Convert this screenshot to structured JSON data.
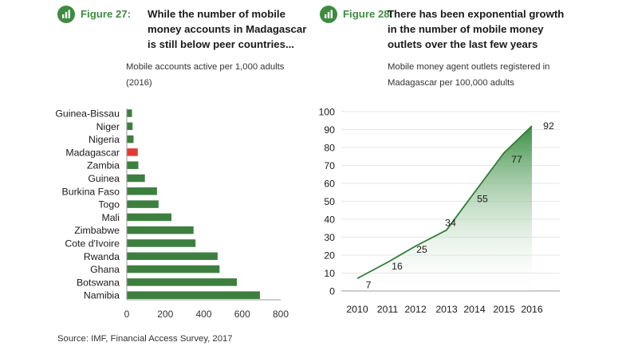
{
  "colors": {
    "accent": "#3d8c40",
    "bar": "#3d7f3f",
    "highlight": "#e53935",
    "line": "#2f7d32",
    "area_top": "#3a8f43",
    "area_bottom": "#ffffff",
    "axis": "#999999",
    "grid": "#e6e6e6"
  },
  "icons": {
    "fig27": "bar-chart-icon",
    "fig28": "bar-chart-icon"
  },
  "figure27": {
    "label": "Figure 27:",
    "title": "While the number of mobile money accounts in Madagascar is still below peer countries...",
    "subtitle": "Mobile accounts active per 1,000 adults (2016)"
  },
  "figure28": {
    "label": "Figure 28:",
    "title": "There has been exponential growth in the number of mobile money outlets over the last few years",
    "subtitle": "Mobile money agent outlets registered in Madagascar per 100,000 adults"
  },
  "source": "Source: IMF, Financial Access Survey, 2017",
  "chart_data": [
    {
      "type": "bar",
      "orientation": "horizontal",
      "title": "Mobile accounts active per 1,000 adults (2016)",
      "categories": [
        "Guinea-Bissau",
        "Niger",
        "Nigeria",
        "Madagascar",
        "Zambia",
        "Guinea",
        "Burkina Faso",
        "Togo",
        "Mali",
        "Zimbabwe",
        "Cote d'Ivoire",
        "Rwanda",
        "Ghana",
        "Botswana",
        "Namibia"
      ],
      "values": [
        25,
        28,
        33,
        55,
        58,
        92,
        155,
        163,
        230,
        345,
        355,
        470,
        480,
        570,
        690
      ],
      "highlight": "Madagascar",
      "xlim": [
        0,
        800
      ],
      "xticks": [
        0,
        200,
        400,
        600,
        800
      ],
      "xtick_labels": [
        "0",
        "200",
        "400",
        "600",
        "800"
      ],
      "xlabel": "",
      "ylabel": ""
    },
    {
      "type": "area",
      "title": "Mobile money agent outlets registered in Madagascar per 100,000 adults",
      "x": [
        "2010",
        "2011",
        "2012",
        "2013",
        "2014",
        "2015",
        "2016"
      ],
      "values": [
        7,
        16,
        25,
        34,
        55,
        77,
        92
      ],
      "data_labels": [
        "7",
        "16",
        "25",
        "34",
        "55",
        "77",
        "92"
      ],
      "ylim": [
        0,
        100
      ],
      "yticks": [
        0,
        10,
        20,
        30,
        40,
        50,
        60,
        70,
        80,
        90,
        100
      ],
      "ytick_labels": [
        "0",
        "10",
        "20",
        "30",
        "40",
        "50",
        "60",
        "70",
        "80",
        "90",
        "100"
      ],
      "xlabel": "",
      "ylabel": ""
    }
  ]
}
